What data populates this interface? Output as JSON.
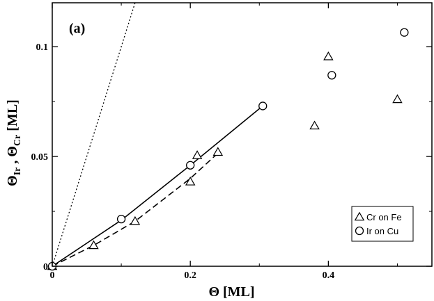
{
  "chart_data": {
    "type": "scatter",
    "panel_label": "(a)",
    "xlabel": "Θ [ML]",
    "ylabel": {
      "main": "Θ",
      "sub1": "Ir",
      "sep": " , Θ",
      "sub2": "Cr",
      "unit": " [ML]"
    },
    "xlim": [
      0,
      0.55
    ],
    "ylim": [
      0,
      0.12
    ],
    "x_ticks": [
      {
        "value": 0,
        "label": "0"
      },
      {
        "value": 0.2,
        "label": "0.2"
      },
      {
        "value": 0.4,
        "label": "0.4"
      }
    ],
    "y_ticks": [
      {
        "value": 0,
        "label": "0"
      },
      {
        "value": 0.05,
        "label": "0.05"
      },
      {
        "value": 0.1,
        "label": "0.1"
      }
    ],
    "grid": false,
    "legend_position": "bottom-right",
    "series": [
      {
        "name": "Cr on Fe",
        "marker": "triangle",
        "x": [
          0,
          0.06,
          0.12,
          0.2,
          0.21,
          0.24,
          0.38,
          0.4,
          0.5
        ],
        "y": [
          0,
          0.0095,
          0.0205,
          0.0385,
          0.0505,
          0.052,
          0.064,
          0.0955,
          0.076
        ]
      },
      {
        "name": "Ir on Cu",
        "marker": "circle",
        "x": [
          0,
          0.1,
          0.2,
          0.305,
          0.405,
          0.51
        ],
        "y": [
          0,
          0.0215,
          0.046,
          0.073,
          0.087,
          0.1065
        ]
      }
    ],
    "lines": [
      {
        "style": "solid",
        "x": [
          0,
          0.1,
          0.2,
          0.305
        ],
        "y": [
          0,
          0.021,
          0.046,
          0.073
        ]
      },
      {
        "style": "dashed",
        "x": [
          0,
          0.06,
          0.12,
          0.2,
          0.24
        ],
        "y": [
          0,
          0.0095,
          0.0205,
          0.04,
          0.0515
        ]
      },
      {
        "style": "dotted",
        "x": [
          0,
          0.12
        ],
        "y": [
          0,
          0.12
        ]
      }
    ]
  }
}
